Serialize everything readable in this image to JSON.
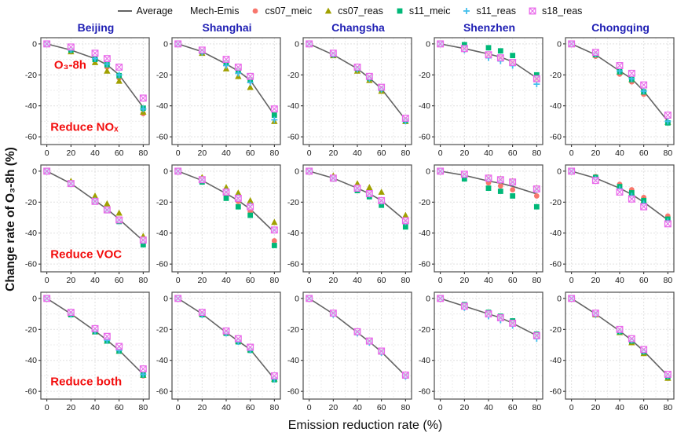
{
  "figure": {
    "xlabel": "Emission reduction rate (%)",
    "ylabel": "Change rate of O₃-8h (%)",
    "title_color": "#1f1fb4",
    "annotation_color": "#f20d0d",
    "grid_color": "#e0e0e0",
    "border_color": "#4d4d4d",
    "tick_color": "#1a1a1a"
  },
  "legend": {
    "average_label": "Average",
    "average_color": "#636363",
    "group_label": "Mech-Emis",
    "items": [
      {
        "label": "cs07_meic",
        "marker": "circle",
        "color": "#F8766D"
      },
      {
        "label": "cs07_reas",
        "marker": "triangle",
        "color": "#A0A000"
      },
      {
        "label": "s11_meic",
        "marker": "square",
        "color": "#00B878"
      },
      {
        "label": "s11_reas",
        "marker": "plus",
        "color": "#41BEEC"
      },
      {
        "label": "s18_reas",
        "marker": "square-x",
        "color": "#E96BEA"
      }
    ]
  },
  "chart_data": {
    "type": "scatter",
    "x": [
      0,
      20,
      40,
      50,
      60,
      80
    ],
    "xticks": [
      0,
      20,
      40,
      60,
      80
    ],
    "yticks": [
      0,
      -20,
      -40,
      -60
    ],
    "xlim": [
      -5,
      85
    ],
    "ylim": [
      -65,
      4
    ],
    "grid": true,
    "columns": [
      "Beijing",
      "Shanghai",
      "Changsha",
      "Shenzhen",
      "Chongqing"
    ],
    "rows": [
      "Reduce NOₓ",
      "Reduce VOC",
      "Reduce both"
    ],
    "pollutant_label": "O₃-8h",
    "series_order": [
      "average",
      "cs07_meic",
      "cs07_reas",
      "s11_meic",
      "s11_reas",
      "s18_reas"
    ],
    "panels": [
      {
        "city": "Beijing",
        "scenario": "Reduce NOₓ",
        "series": {
          "average": [
            0,
            -4,
            -9.5,
            -13.5,
            -20,
            -41
          ],
          "cs07_meic": [
            0,
            -4.5,
            -10.5,
            -15,
            -22,
            -45
          ],
          "cs07_reas": [
            0,
            -5,
            -12,
            -17.5,
            -24,
            -44
          ],
          "s11_meic": [
            0,
            -4,
            -10,
            -13.5,
            -20.5,
            -41.5
          ],
          "s11_reas": [
            0,
            -4,
            -9.5,
            -13,
            -20,
            -42
          ],
          "s18_reas": [
            0,
            -2,
            -6,
            -9.5,
            -15,
            -35
          ]
        }
      },
      {
        "city": "Shanghai",
        "scenario": "Reduce NOₓ",
        "series": {
          "average": [
            0,
            -5,
            -13,
            -17.5,
            -23.5,
            -46
          ],
          "cs07_meic": [
            0,
            -5,
            -13,
            -18,
            -24,
            -46
          ],
          "cs07_reas": [
            0,
            -6,
            -16,
            -21,
            -28,
            -50
          ],
          "s11_meic": [
            0,
            -5,
            -12,
            -17,
            -23,
            -46
          ],
          "s11_reas": [
            0,
            -5.5,
            -14,
            -19,
            -25,
            -49
          ],
          "s18_reas": [
            0,
            -4,
            -10,
            -15,
            -21,
            -42
          ]
        }
      },
      {
        "city": "Changsha",
        "scenario": "Reduce NOₓ",
        "series": {
          "average": [
            0,
            -7,
            -16,
            -22,
            -29,
            -49
          ],
          "cs07_meic": [
            0,
            -7,
            -16,
            -22,
            -29,
            -49
          ],
          "cs07_reas": [
            0,
            -7.5,
            -17.5,
            -23.5,
            -30.5,
            -50
          ],
          "s11_meic": [
            0,
            -7,
            -16,
            -22,
            -29,
            -49.5
          ],
          "s11_reas": [
            0,
            -7,
            -16.5,
            -22.5,
            -29.5,
            -50
          ],
          "s18_reas": [
            0,
            -6,
            -15,
            -21,
            -28,
            -48
          ]
        }
      },
      {
        "city": "Shenzhen",
        "scenario": "Reduce NOₓ",
        "series": {
          "average": [
            0,
            -3,
            -6.5,
            -8.5,
            -11.5,
            -22
          ],
          "cs07_meic": [
            0,
            -3,
            -7,
            -9,
            -12,
            -23
          ],
          "cs07_reas": [
            0,
            -3.5,
            -7.5,
            -9.5,
            -12.5,
            -23
          ],
          "s11_meic": [
            0,
            -0.5,
            -2.5,
            -4.5,
            -7.5,
            -20
          ],
          "s11_reas": [
            0,
            -4,
            -9,
            -11,
            -14,
            -26
          ],
          "s18_reas": [
            0,
            -3,
            -7,
            -9,
            -12,
            -22.5
          ]
        }
      },
      {
        "city": "Chongqing",
        "scenario": "Reduce NOₓ",
        "series": {
          "average": [
            0,
            -7,
            -17.5,
            -22.5,
            -30.5,
            -50
          ],
          "cs07_meic": [
            0,
            -8,
            -19.5,
            -24.5,
            -32.5,
            -51
          ],
          "cs07_reas": [
            0,
            -7,
            -18,
            -23,
            -31,
            -50.5
          ],
          "s11_meic": [
            0,
            -7,
            -18,
            -23,
            -31,
            -51
          ],
          "s11_reas": [
            0,
            -6.5,
            -17.5,
            -22.5,
            -30.5,
            -50
          ],
          "s18_reas": [
            0,
            -5.5,
            -14,
            -19,
            -26.5,
            -46
          ]
        }
      },
      {
        "city": "Beijing",
        "scenario": "Reduce VOC",
        "series": {
          "average": [
            0,
            -8,
            -19,
            -24.5,
            -31,
            -45
          ],
          "cs07_meic": [
            0,
            -8,
            -19,
            -25,
            -31.5,
            -45
          ],
          "cs07_reas": [
            0,
            -6.5,
            -16,
            -21,
            -27,
            -42
          ],
          "s11_meic": [
            0,
            -8.5,
            -19.5,
            -25.5,
            -32.5,
            -47.5
          ],
          "s11_reas": [
            0,
            -8,
            -19,
            -25,
            -31.5,
            -45
          ],
          "s18_reas": [
            0,
            -8,
            -19.5,
            -25,
            -31.5,
            -44.5
          ]
        }
      },
      {
        "city": "Shanghai",
        "scenario": "Reduce VOC",
        "series": {
          "average": [
            0,
            -6,
            -14.5,
            -19,
            -24.5,
            -39.5
          ],
          "cs07_meic": [
            0,
            -6,
            -14.5,
            -19.5,
            -26,
            -45
          ],
          "cs07_reas": [
            0,
            -4,
            -10.5,
            -14,
            -19,
            -33
          ],
          "s11_meic": [
            0,
            -7,
            -17.5,
            -23,
            -28.5,
            -48
          ],
          "s11_reas": [
            0,
            -5.5,
            -13,
            -17,
            -22,
            -38
          ],
          "s18_reas": [
            0,
            -5.5,
            -13.5,
            -17.5,
            -23,
            -38
          ]
        }
      },
      {
        "city": "Changsha",
        "scenario": "Reduce VOC",
        "series": {
          "average": [
            0,
            -4.5,
            -11,
            -14.5,
            -19,
            -32
          ],
          "cs07_meic": [
            0,
            -4.5,
            -11,
            -15,
            -20,
            -33
          ],
          "cs07_reas": [
            0,
            -3,
            -8,
            -10.5,
            -13.5,
            -28.5
          ],
          "s11_meic": [
            0,
            -5,
            -12.5,
            -16.5,
            -22,
            -36
          ],
          "s11_reas": [
            0,
            -4.5,
            -11,
            -15,
            -19.5,
            -33
          ],
          "s18_reas": [
            0,
            -4.5,
            -11,
            -14.5,
            -19,
            -32
          ]
        }
      },
      {
        "city": "Shenzhen",
        "scenario": "Reduce VOC",
        "series": {
          "average": [
            0,
            -2.7,
            -6.4,
            -7.8,
            -9.8,
            -14.7
          ],
          "cs07_meic": [
            0,
            -2.5,
            -7.5,
            -9.5,
            -12,
            -16
          ],
          "cs07_reas": [
            0,
            -2,
            -4,
            -5,
            -6.5,
            -11
          ],
          "s11_meic": [
            0,
            -5,
            -11,
            -13,
            -16,
            -23
          ],
          "s11_reas": [
            0,
            -2.5,
            -5,
            -6,
            -7.5,
            -12
          ],
          "s18_reas": [
            0,
            -2,
            -4.5,
            -5.5,
            -7,
            -11.5
          ]
        }
      },
      {
        "city": "Chongqing",
        "scenario": "Reduce VOC",
        "series": {
          "average": [
            0,
            -4.5,
            -11,
            -15,
            -20,
            -31.5
          ],
          "cs07_meic": [
            0,
            -3.5,
            -8.5,
            -12,
            -17,
            -29
          ],
          "cs07_reas": [
            0,
            -4,
            -10,
            -14,
            -19,
            -31
          ],
          "s11_meic": [
            0,
            -4,
            -10,
            -14,
            -19,
            -31
          ],
          "s11_reas": [
            0,
            -5,
            -11.5,
            -16,
            -21,
            -32.5
          ],
          "s18_reas": [
            0,
            -6,
            -13.5,
            -18,
            -23,
            -34
          ]
        }
      },
      {
        "city": "Beijing",
        "scenario": "Reduce both",
        "series": {
          "average": [
            0,
            -10,
            -21,
            -27,
            -33.5,
            -49
          ],
          "cs07_meic": [
            0,
            -10,
            -21.5,
            -27.5,
            -34,
            -50
          ],
          "cs07_reas": [
            0,
            -10,
            -21.5,
            -27.5,
            -34,
            -49.5
          ],
          "s11_meic": [
            0,
            -10.5,
            -21.5,
            -27.5,
            -34,
            -49.5
          ],
          "s11_reas": [
            0,
            -10,
            -21,
            -27,
            -33.5,
            -49
          ],
          "s18_reas": [
            0,
            -9,
            -19.5,
            -24.5,
            -31,
            -45.5
          ]
        }
      },
      {
        "city": "Shanghai",
        "scenario": "Reduce both",
        "series": {
          "average": [
            0,
            -10,
            -22,
            -27.5,
            -33,
            -52
          ],
          "cs07_meic": [
            0,
            -10,
            -22,
            -27.5,
            -33.5,
            -52.5
          ],
          "cs07_reas": [
            0,
            -10,
            -22,
            -27.5,
            -33,
            -52
          ],
          "s11_meic": [
            0,
            -10.5,
            -22.5,
            -28,
            -33.5,
            -52.5
          ],
          "s11_reas": [
            0,
            -10.5,
            -22.5,
            -28,
            -33.5,
            -52
          ],
          "s18_reas": [
            0,
            -9,
            -21,
            -26,
            -31.5,
            -50
          ]
        }
      },
      {
        "city": "Changsha",
        "scenario": "Reduce both",
        "series": {
          "average": [
            0,
            -10,
            -22,
            -28,
            -34.5,
            -50
          ],
          "cs07_meic": [
            0,
            -10,
            -22,
            -28,
            -34.5,
            -50
          ],
          "cs07_reas": [
            0,
            -10,
            -22,
            -28,
            -34.5,
            -50
          ],
          "s11_meic": [
            0,
            -10,
            -22,
            -28,
            -34.5,
            -50
          ],
          "s11_reas": [
            0,
            -10.5,
            -22.5,
            -28.5,
            -35,
            -50.5
          ],
          "s18_reas": [
            0,
            -9.5,
            -21.5,
            -27.5,
            -34,
            -49.5
          ]
        }
      },
      {
        "city": "Shenzhen",
        "scenario": "Reduce both",
        "series": {
          "average": [
            0,
            -5,
            -10,
            -12.5,
            -16,
            -24
          ],
          "cs07_meic": [
            0,
            -5,
            -10,
            -12.5,
            -16,
            -24
          ],
          "cs07_reas": [
            0,
            -5,
            -10,
            -12.5,
            -16,
            -24
          ],
          "s11_meic": [
            0,
            -4,
            -9,
            -11.5,
            -14.5,
            -23
          ],
          "s11_reas": [
            0,
            -6,
            -11.5,
            -14,
            -17.5,
            -26
          ],
          "s18_reas": [
            0,
            -5,
            -10,
            -12.5,
            -16,
            -24
          ]
        }
      },
      {
        "city": "Chongqing",
        "scenario": "Reduce both",
        "series": {
          "average": [
            0,
            -10,
            -21,
            -27,
            -34,
            -50
          ],
          "cs07_meic": [
            0,
            -10.5,
            -21.5,
            -28,
            -35,
            -51
          ],
          "cs07_reas": [
            0,
            -10.5,
            -22,
            -28.5,
            -35.5,
            -51.5
          ],
          "s11_meic": [
            0,
            -10,
            -21.5,
            -27.5,
            -34.5,
            -50.5
          ],
          "s11_reas": [
            0,
            -10.5,
            -21,
            -27,
            -34,
            -50
          ],
          "s18_reas": [
            0,
            -9.5,
            -20,
            -26,
            -33,
            -49
          ]
        }
      }
    ]
  }
}
